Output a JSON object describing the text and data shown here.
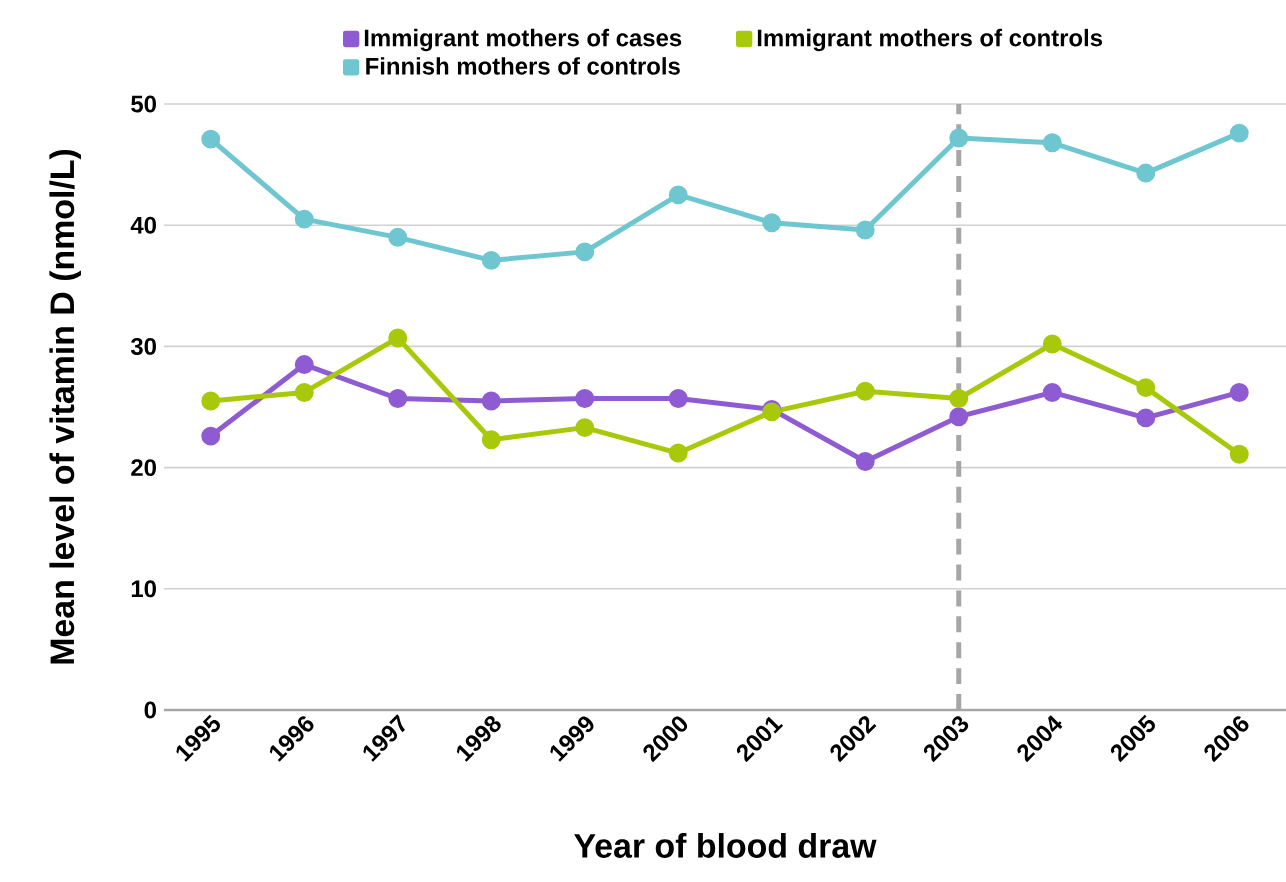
{
  "chart_data": {
    "type": "line",
    "xlabel": "Year of blood draw",
    "ylabel": "Mean level of vitamin D (nmol/L)",
    "x": [
      1995,
      1996,
      1997,
      1998,
      1999,
      2000,
      2001,
      2002,
      2003,
      2004,
      2005,
      2006
    ],
    "xlim": [
      1994.5,
      2006.5
    ],
    "xticks": [
      1995,
      1996,
      1997,
      1998,
      1999,
      2000,
      2001,
      2002,
      2003,
      2004,
      2005,
      2006
    ],
    "ylim": [
      0,
      50
    ],
    "yticks": [
      0,
      10,
      20,
      30,
      40,
      50
    ],
    "grid": "y",
    "legend": "top",
    "marker": "circle",
    "line_style": "solid",
    "series": [
      {
        "name": "Immigrant mothers of cases",
        "color": "#8e5bd3",
        "values": [
          22.6,
          28.5,
          25.7,
          25.5,
          25.7,
          25.7,
          24.8,
          20.5,
          24.2,
          26.2,
          24.1,
          26.2
        ]
      },
      {
        "name": "Immigrant mothers of controls",
        "color": "#a8c90a",
        "values": [
          25.5,
          26.2,
          30.7,
          22.3,
          23.3,
          21.2,
          24.6,
          26.3,
          25.7,
          30.2,
          26.6,
          21.1
        ]
      },
      {
        "name": "Finnish mothers of controls",
        "color": "#6ec7d0",
        "values": [
          47.1,
          40.5,
          39.0,
          37.1,
          37.8,
          42.5,
          40.2,
          39.6,
          47.2,
          46.8,
          44.3,
          47.6
        ]
      }
    ],
    "ref_lines": [
      {
        "axis": "x",
        "value": 2003,
        "color": "#a6a6a6",
        "line_style": "dashed"
      }
    ]
  }
}
